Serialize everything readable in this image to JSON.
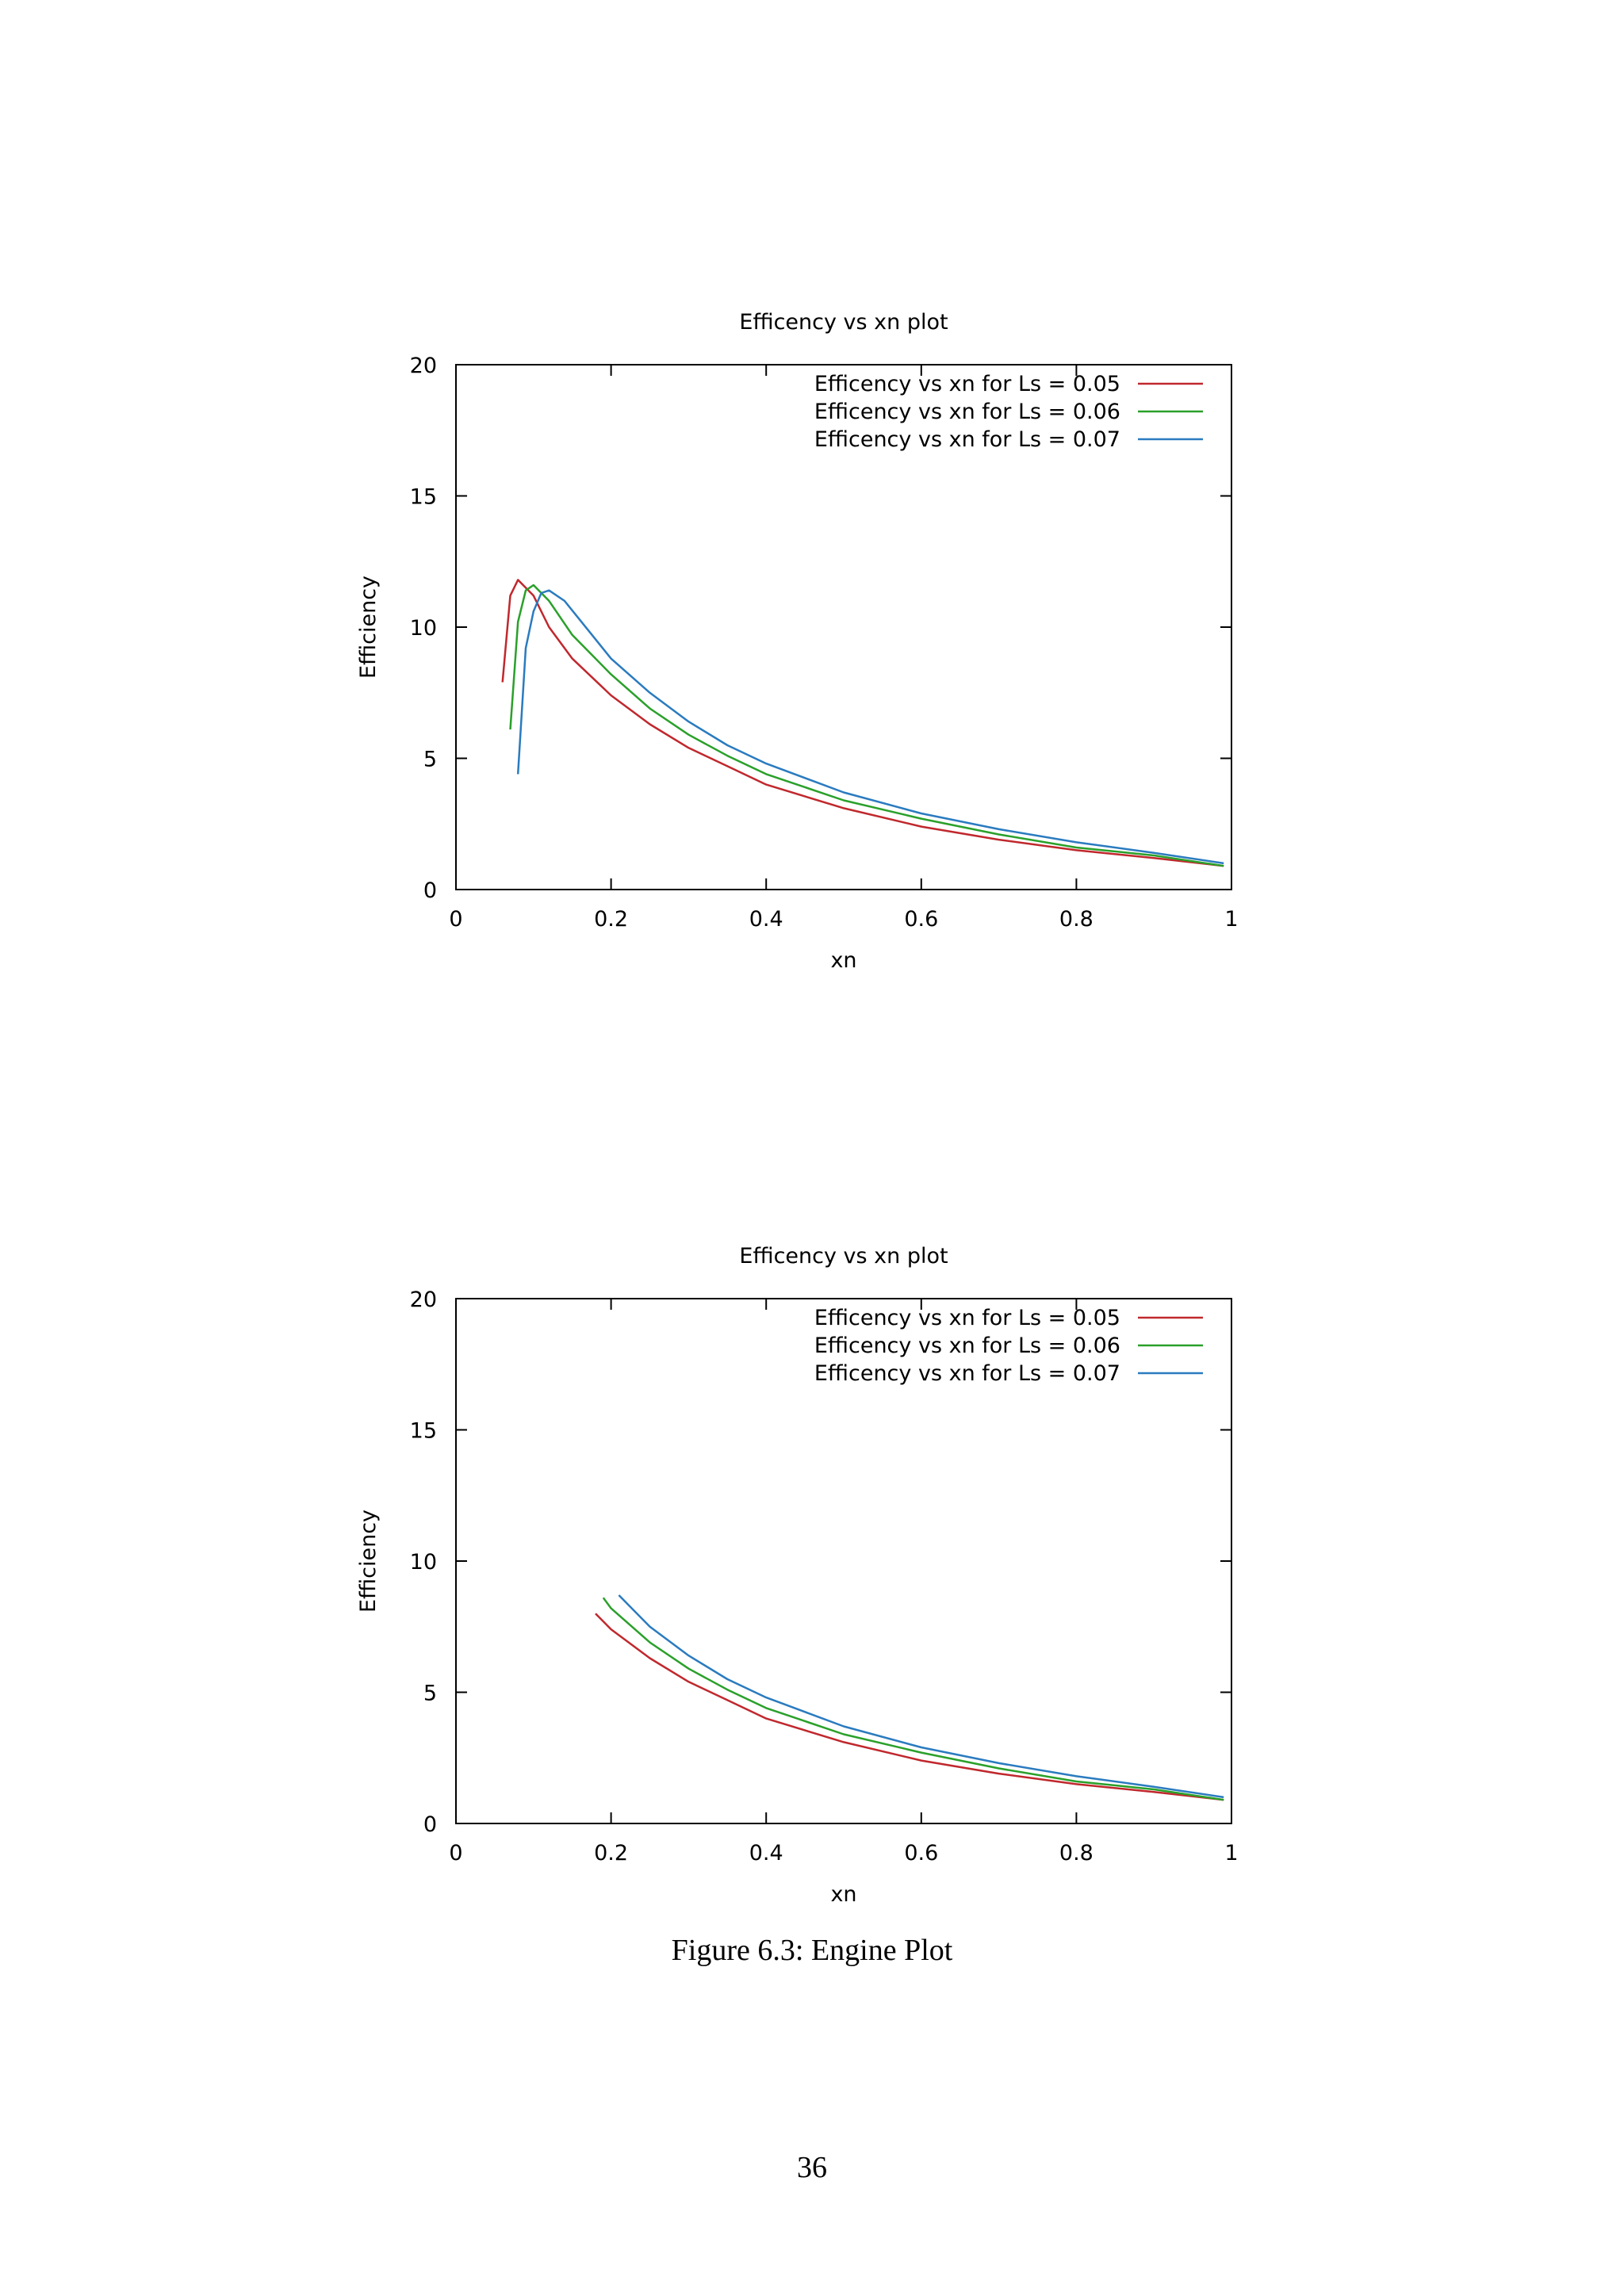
{
  "chart_data": [
    {
      "type": "line",
      "title": "Efficency vs xn plot",
      "xlabel": "xn",
      "ylabel": "Efficiency",
      "xlim": [
        0,
        1
      ],
      "ylim": [
        0,
        20
      ],
      "xticks": [
        "0",
        "0.2",
        "0.4",
        "0.6",
        "0.8",
        "1"
      ],
      "yticks": [
        "0",
        "5",
        "10",
        "15",
        "20"
      ],
      "grid": false,
      "legend_position": "top-right",
      "series": [
        {
          "name": "Efficency vs xn for Ls = 0.05",
          "color": "#c0282d",
          "points": [
            [
              0.06,
              7.9
            ],
            [
              0.07,
              11.2
            ],
            [
              0.08,
              11.8
            ],
            [
              0.1,
              11.2
            ],
            [
              0.12,
              10.0
            ],
            [
              0.15,
              8.8
            ],
            [
              0.2,
              7.4
            ],
            [
              0.25,
              6.3
            ],
            [
              0.3,
              5.4
            ],
            [
              0.35,
              4.7
            ],
            [
              0.4,
              4.0
            ],
            [
              0.5,
              3.1
            ],
            [
              0.6,
              2.4
            ],
            [
              0.7,
              1.9
            ],
            [
              0.8,
              1.5
            ],
            [
              0.9,
              1.2
            ],
            [
              0.99,
              0.9
            ]
          ]
        },
        {
          "name": "Efficency vs xn for Ls = 0.06",
          "color": "#2aa02a",
          "points": [
            [
              0.07,
              6.1
            ],
            [
              0.08,
              10.2
            ],
            [
              0.09,
              11.4
            ],
            [
              0.1,
              11.6
            ],
            [
              0.12,
              11.0
            ],
            [
              0.15,
              9.7
            ],
            [
              0.2,
              8.2
            ],
            [
              0.25,
              6.9
            ],
            [
              0.3,
              5.9
            ],
            [
              0.35,
              5.1
            ],
            [
              0.4,
              4.4
            ],
            [
              0.5,
              3.4
            ],
            [
              0.6,
              2.7
            ],
            [
              0.7,
              2.1
            ],
            [
              0.8,
              1.6
            ],
            [
              0.9,
              1.3
            ],
            [
              0.99,
              0.9
            ]
          ]
        },
        {
          "name": "Efficency vs xn for Ls = 0.07",
          "color": "#2a7bbf",
          "points": [
            [
              0.08,
              4.4
            ],
            [
              0.09,
              9.2
            ],
            [
              0.1,
              10.6
            ],
            [
              0.11,
              11.3
            ],
            [
              0.12,
              11.4
            ],
            [
              0.14,
              11.0
            ],
            [
              0.17,
              9.9
            ],
            [
              0.2,
              8.8
            ],
            [
              0.25,
              7.5
            ],
            [
              0.3,
              6.4
            ],
            [
              0.35,
              5.5
            ],
            [
              0.4,
              4.8
            ],
            [
              0.5,
              3.7
            ],
            [
              0.6,
              2.9
            ],
            [
              0.7,
              2.3
            ],
            [
              0.8,
              1.8
            ],
            [
              0.9,
              1.4
            ],
            [
              0.99,
              1.0
            ]
          ]
        }
      ]
    },
    {
      "type": "line",
      "title": "Efficency vs xn plot",
      "xlabel": "xn",
      "ylabel": "Efficiency",
      "xlim": [
        0,
        1
      ],
      "ylim": [
        0,
        20
      ],
      "xticks": [
        "0",
        "0.2",
        "0.4",
        "0.6",
        "0.8",
        "1"
      ],
      "yticks": [
        "0",
        "5",
        "10",
        "15",
        "20"
      ],
      "grid": false,
      "legend_position": "top-right",
      "series": [
        {
          "name": "Efficency vs xn for Ls = 0.05",
          "color": "#c0282d",
          "points": [
            [
              0.18,
              8.0
            ],
            [
              0.2,
              7.4
            ],
            [
              0.25,
              6.3
            ],
            [
              0.3,
              5.4
            ],
            [
              0.35,
              4.7
            ],
            [
              0.4,
              4.0
            ],
            [
              0.5,
              3.1
            ],
            [
              0.6,
              2.4
            ],
            [
              0.7,
              1.9
            ],
            [
              0.8,
              1.5
            ],
            [
              0.9,
              1.2
            ],
            [
              0.99,
              0.9
            ]
          ]
        },
        {
          "name": "Efficency vs xn for Ls = 0.06",
          "color": "#2aa02a",
          "points": [
            [
              0.19,
              8.6
            ],
            [
              0.2,
              8.2
            ],
            [
              0.25,
              6.9
            ],
            [
              0.3,
              5.9
            ],
            [
              0.35,
              5.1
            ],
            [
              0.4,
              4.4
            ],
            [
              0.5,
              3.4
            ],
            [
              0.6,
              2.7
            ],
            [
              0.7,
              2.1
            ],
            [
              0.8,
              1.6
            ],
            [
              0.9,
              1.3
            ],
            [
              0.99,
              0.9
            ]
          ]
        },
        {
          "name": "Efficency vs xn for Ls = 0.07",
          "color": "#2a7bbf",
          "points": [
            [
              0.21,
              8.7
            ],
            [
              0.25,
              7.5
            ],
            [
              0.3,
              6.4
            ],
            [
              0.35,
              5.5
            ],
            [
              0.4,
              4.8
            ],
            [
              0.5,
              3.7
            ],
            [
              0.6,
              2.9
            ],
            [
              0.7,
              2.3
            ],
            [
              0.8,
              1.8
            ],
            [
              0.9,
              1.4
            ],
            [
              0.99,
              1.0
            ]
          ]
        }
      ]
    }
  ],
  "caption": "Figure 6.3: Engine Plot",
  "page_number": "36"
}
